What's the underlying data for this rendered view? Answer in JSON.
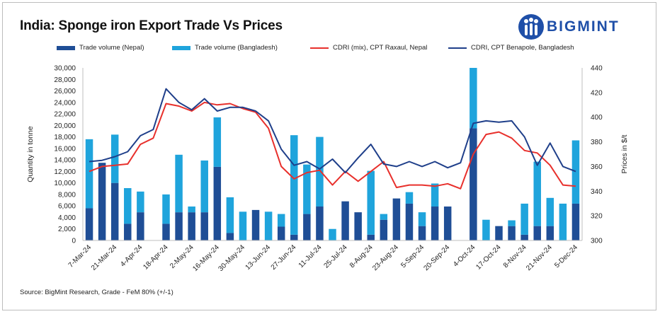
{
  "title": "India: Sponge iron Export Trade Vs Prices",
  "brand": "BIGMINT",
  "source": "Source: BigMint Research, Grade - FeM 80% (+/-1)",
  "colors": {
    "nepal_bar": "#1f4e96",
    "bangladesh_bar": "#1fa4dc",
    "raxaul_line": "#e8302c",
    "benapole_line": "#1f3f8a",
    "brand": "#1f4fa8"
  },
  "chart_data": {
    "type": "bar",
    "ylabel": "Quantity in tonne",
    "y2label": "Prices in $/t",
    "ylim": [
      0,
      30000
    ],
    "y_ticks": [
      "0",
      "2,000",
      "4,000",
      "6,000",
      "8,000",
      "10,000",
      "12,000",
      "14,000",
      "16,000",
      "18,000",
      "20,000",
      "22,000",
      "24,000",
      "26,000",
      "28,000",
      "30,000"
    ],
    "y2lim": [
      300,
      440
    ],
    "y2_ticks": [
      "300",
      "320",
      "340",
      "360",
      "380",
      "400",
      "420",
      "440"
    ],
    "x_tick_labels": [
      "7-Mar-24",
      "21-Mar-24",
      "4-Apr-24",
      "18-Apr-24",
      "2-May-24",
      "16-May-24",
      "30-May-24",
      "13-Jun-24",
      "27-Jun-24",
      "11-Jul-24",
      "25-Jul-24",
      "8-Aug-24",
      "23-Aug-24",
      "5-Sep-24",
      "20-Sep-24",
      "4-Oct-24",
      "17-Oct-24",
      "8-Nov-24",
      "21-Nov-24",
      "5-Dec-24"
    ],
    "categories": [
      "7-Mar-24",
      "14-Mar-24",
      "21-Mar-24",
      "28-Mar-24",
      "4-Apr-24",
      "11-Apr-24",
      "18-Apr-24",
      "25-Apr-24",
      "2-May-24",
      "9-May-24",
      "16-May-24",
      "23-May-24",
      "30-May-24",
      "6-Jun-24",
      "13-Jun-24",
      "20-Jun-24",
      "27-Jun-24",
      "4-Jul-24",
      "11-Jul-24",
      "18-Jul-24",
      "25-Jul-24",
      "1-Aug-24",
      "8-Aug-24",
      "16-Aug-24",
      "23-Aug-24",
      "30-Aug-24",
      "5-Sep-24",
      "13-Sep-24",
      "20-Sep-24",
      "27-Sep-24",
      "4-Oct-24",
      "10-Oct-24",
      "17-Oct-24",
      "24-Oct-24",
      "8-Nov-24",
      "14-Nov-24",
      "21-Nov-24",
      "28-Nov-24",
      "5-Dec-24"
    ],
    "series": [
      {
        "name": "Trade volume (Nepal)",
        "kind": "bar",
        "values": [
          5600,
          13500,
          10000,
          2900,
          4900,
          0,
          2900,
          4900,
          4900,
          4900,
          12800,
          1300,
          0,
          5300,
          0,
          2400,
          1000,
          4600,
          5900,
          0,
          6800,
          4900,
          1000,
          3600,
          7300,
          6400,
          2500,
          5900,
          5900,
          0,
          19500,
          0,
          2500,
          2500,
          1000,
          2500,
          2500,
          0,
          6400
        ]
      },
      {
        "name": "Trade volume (Bangladesh)",
        "kind": "bar",
        "values": [
          12000,
          0,
          8400,
          6200,
          3600,
          0,
          5100,
          10000,
          1000,
          9000,
          8600,
          6200,
          5000,
          0,
          5000,
          2200,
          17300,
          8600,
          12100,
          2000,
          0,
          0,
          11100,
          1000,
          0,
          2000,
          2400,
          4000,
          0,
          0,
          10500,
          3600,
          0,
          1000,
          5400,
          11200,
          4900,
          6400,
          11000
        ]
      },
      {
        "name": "CDRI (mix), CPT Raxaul, Nepal",
        "kind": "line",
        "axis": "right",
        "values": [
          356,
          360,
          361,
          362,
          378,
          383,
          411,
          409,
          405,
          412,
          410,
          411,
          407,
          404,
          391,
          360,
          350,
          355,
          357,
          345,
          356,
          348,
          356,
          364,
          343,
          345,
          345,
          344,
          346,
          342,
          370,
          386,
          388,
          383,
          373,
          371,
          361,
          345,
          344
        ]
      },
      {
        "name": "CDRI, CPT Benapole, Bangladesh",
        "kind": "line",
        "axis": "right",
        "values": [
          364,
          365,
          368,
          372,
          385,
          390,
          423,
          412,
          406,
          415,
          405,
          408,
          408,
          405,
          397,
          374,
          361,
          364,
          358,
          366,
          355,
          367,
          378,
          362,
          360,
          364,
          360,
          364,
          359,
          363,
          395,
          397,
          396,
          397,
          384,
          361,
          379,
          360,
          356
        ]
      }
    ]
  }
}
